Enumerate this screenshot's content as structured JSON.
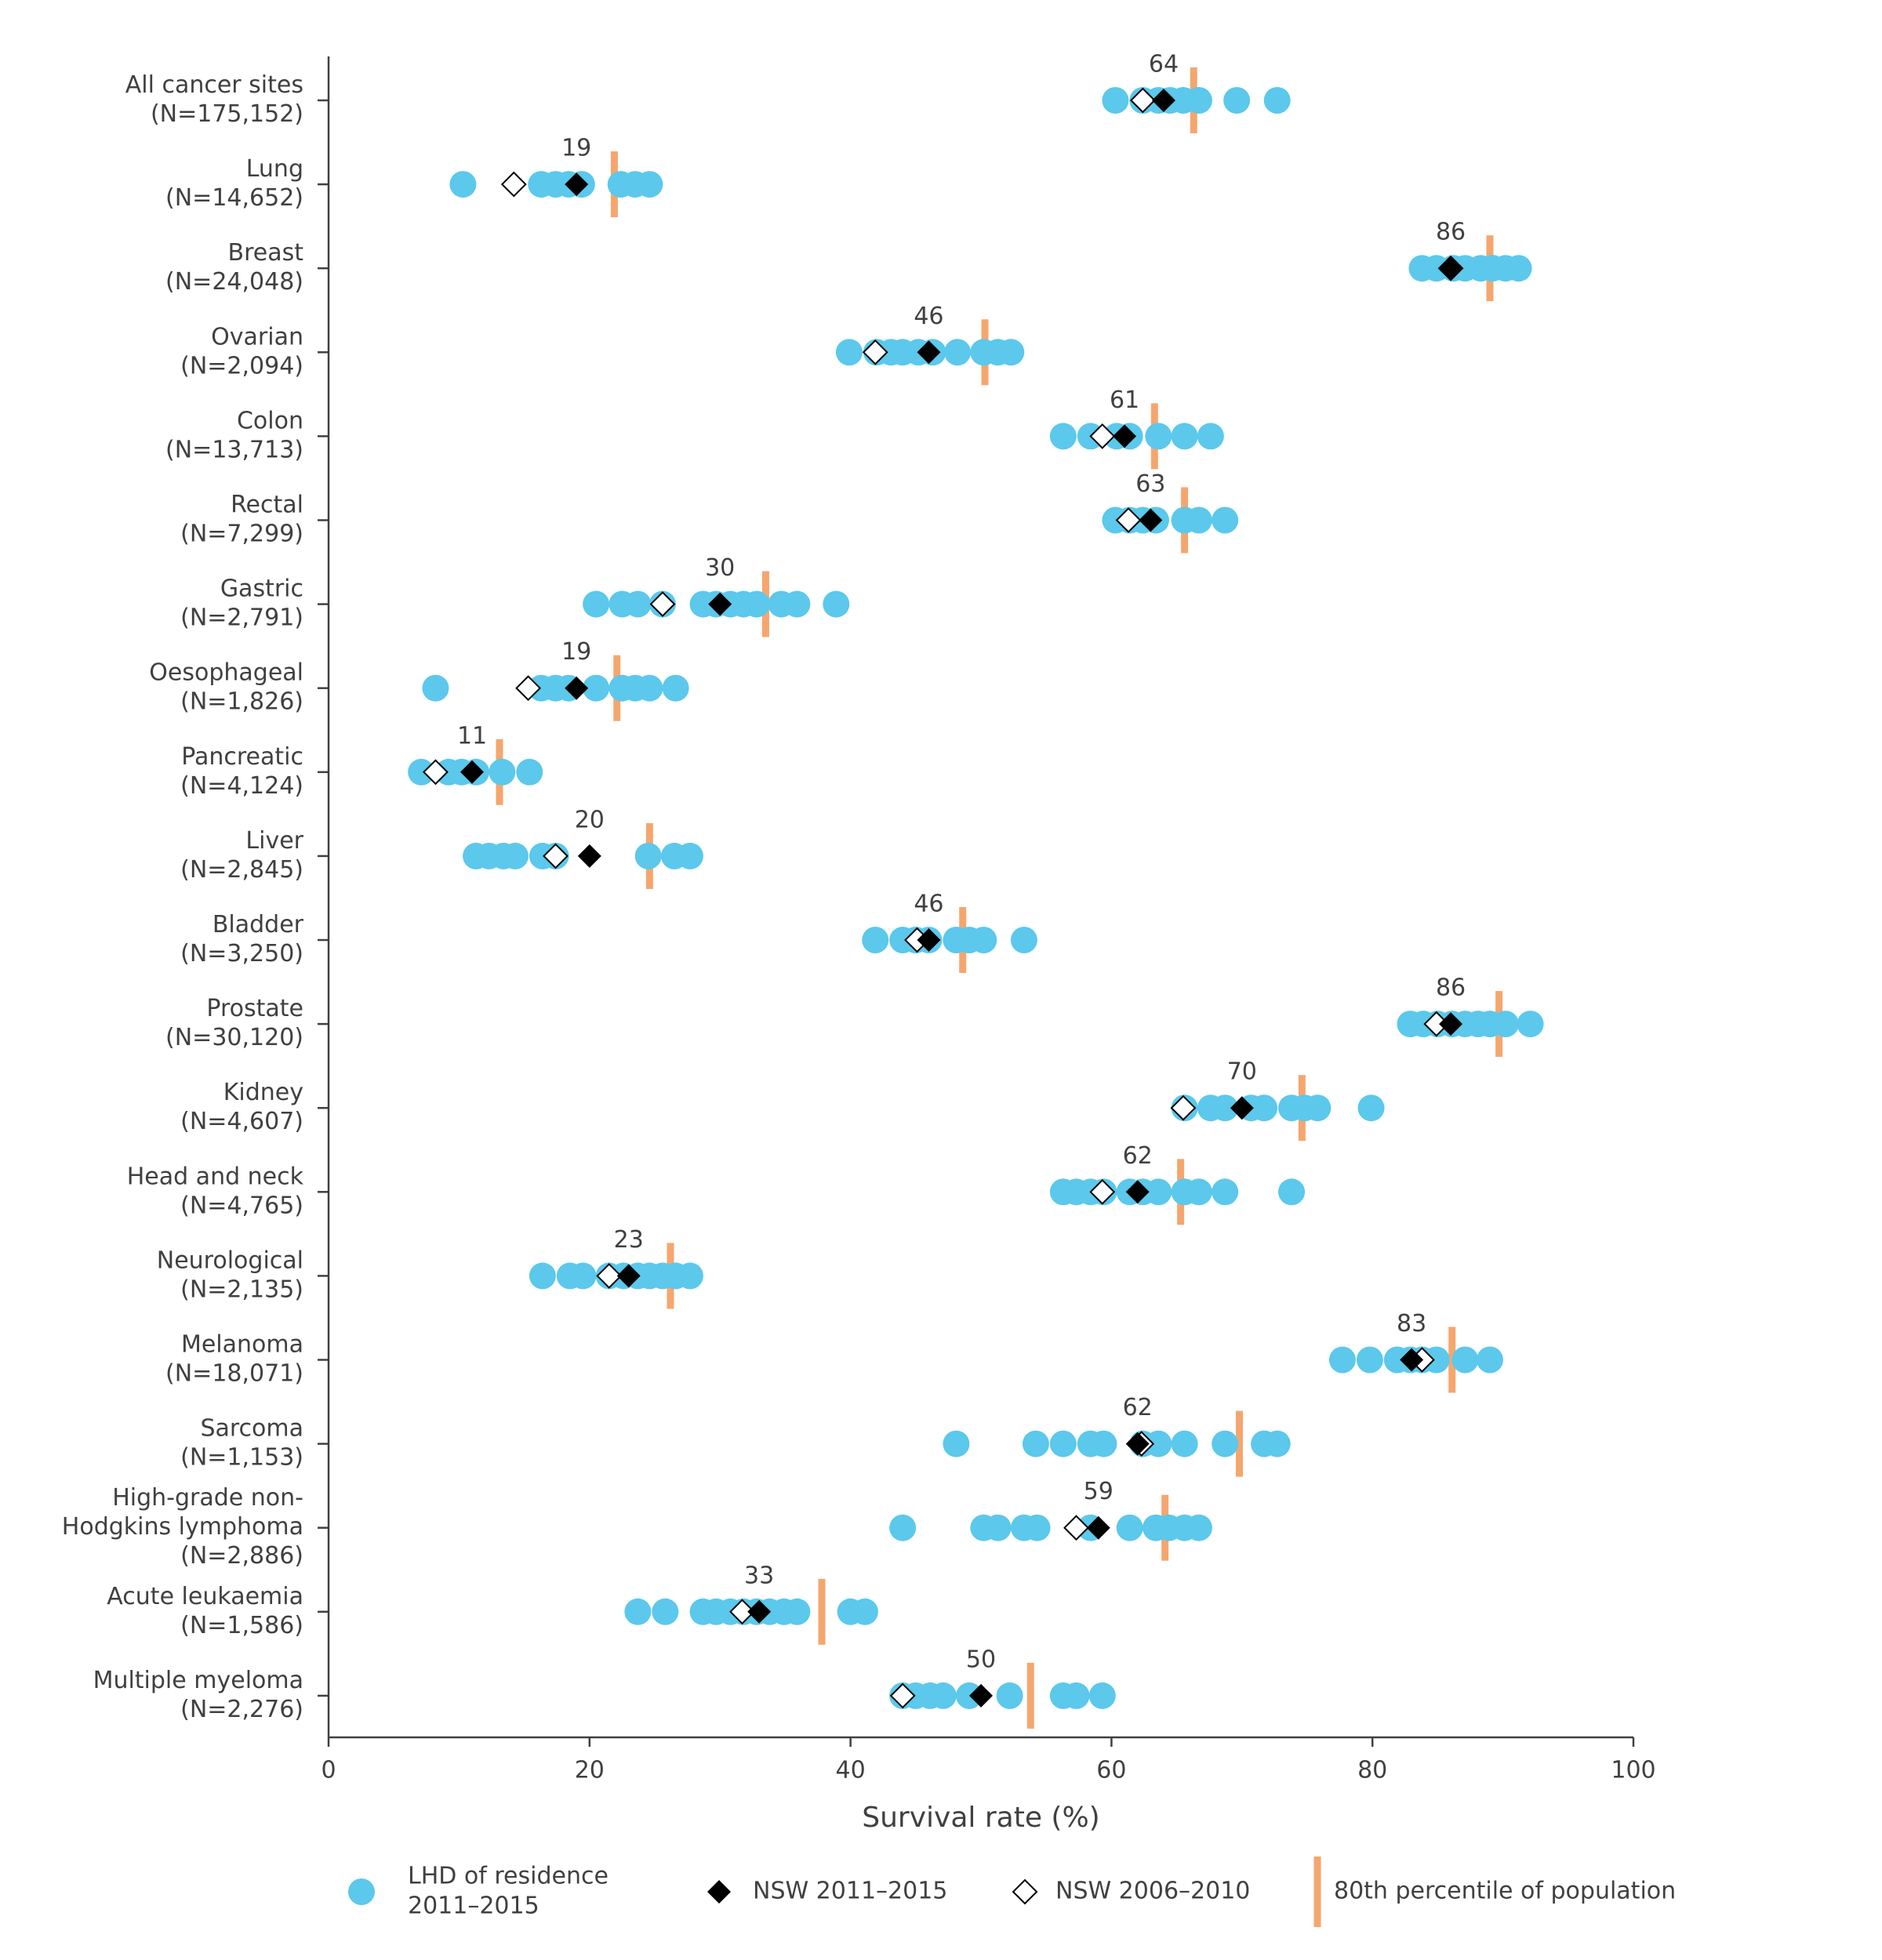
{
  "chart_data": {
    "type": "dot",
    "xlabel": "Survival rate (%)",
    "xlim": [
      0,
      100
    ],
    "xticks": [
      0,
      20,
      40,
      60,
      80,
      100
    ],
    "categories": [
      [
        "All cancer sites",
        "(N=175,152)"
      ],
      [
        "Lung",
        "(N=14,652)"
      ],
      [
        "Breast",
        "(N=24,048)"
      ],
      [
        "Ovarian",
        "(N=2,094)"
      ],
      [
        "Colon",
        "(N=13,713)"
      ],
      [
        "Rectal",
        "(N=7,299)"
      ],
      [
        "Gastric",
        "(N=2,791)"
      ],
      [
        "Oesophageal",
        "(N=1,826)"
      ],
      [
        "Pancreatic",
        "(N=4,124)"
      ],
      [
        "Liver",
        "(N=2,845)"
      ],
      [
        "Bladder",
        "(N=3,250)"
      ],
      [
        "Prostate",
        "(N=30,120)"
      ],
      [
        "Kidney",
        "(N=4,607)"
      ],
      [
        "Head and neck",
        "(N=4,765)"
      ],
      [
        "Neurological",
        "(N=2,135)"
      ],
      [
        "Melanoma",
        "(N=18,071)"
      ],
      [
        "Sarcoma",
        "(N=1,153)"
      ],
      [
        "High-grade non-",
        "Hodgkins lymphoma",
        "(N=2,886)"
      ],
      [
        "Acute leukaemia",
        "(N=1,586)"
      ],
      [
        "Multiple myeloma",
        "(N=2,276)"
      ]
    ],
    "series": [
      {
        "name": [
          "LHD of residence",
          "2011–2015"
        ],
        "color": "#5bc8ec",
        "marker": "circle",
        "values": [
          [
            60.3,
            62.4,
            63.6,
            64.5,
            65.5,
            66.7,
            69.6,
            72.7
          ],
          [
            10.3,
            16.3,
            17.4,
            18.4,
            19.4,
            22.4,
            23.5,
            24.6
          ],
          [
            83.8,
            84.9,
            86.2,
            87.1,
            88.3,
            89.2,
            90.2,
            91.2
          ],
          [
            39.9,
            42.0,
            43.1,
            44.0,
            45.2,
            46.3,
            48.2,
            50.2,
            51.3,
            52.3
          ],
          [
            56.3,
            58.4,
            60.4,
            61.4,
            63.6,
            65.6,
            67.6
          ],
          [
            60.3,
            61.4,
            62.4,
            63.4,
            65.6,
            66.7,
            68.7
          ],
          [
            20.5,
            22.5,
            23.7,
            25.6,
            28.7,
            29.7,
            30.8,
            31.8,
            32.8,
            34.7,
            35.9,
            38.9
          ],
          [
            8.2,
            16.3,
            17.4,
            18.4,
            20.5,
            22.5,
            23.5,
            24.6,
            26.6
          ],
          [
            7.1,
            9.2,
            10.2,
            11.3,
            13.3,
            15.4
          ],
          [
            11.3,
            12.3,
            13.4,
            14.3,
            16.4,
            17.4,
            24.5,
            26.5,
            27.7
          ],
          [
            41.9,
            44.0,
            45.0,
            46.0,
            48.1,
            49.1,
            50.2,
            53.3
          ],
          [
            82.9,
            83.9,
            85.0,
            86.1,
            87.1,
            88.1,
            89.0,
            90.2,
            92.1
          ],
          [
            65.6,
            67.6,
            68.7,
            70.7,
            71.7,
            73.8,
            74.8,
            75.8,
            79.9
          ],
          [
            56.3,
            57.3,
            58.4,
            59.4,
            61.4,
            62.4,
            63.6,
            65.6,
            66.7,
            68.7,
            73.8
          ],
          [
            16.4,
            18.5,
            19.5,
            21.5,
            22.6,
            23.7,
            24.6,
            25.6,
            26.6,
            27.7
          ],
          [
            77.7,
            79.8,
            81.9,
            82.9,
            83.8,
            84.9,
            87.1,
            89.0
          ],
          [
            48.1,
            54.2,
            56.3,
            58.4,
            59.4,
            62.4,
            63.6,
            65.6,
            68.7,
            71.7,
            72.7
          ],
          [
            44.0,
            50.2,
            51.3,
            53.3,
            54.3,
            58.4,
            61.4,
            63.4,
            64.4,
            65.6,
            66.7
          ],
          [
            23.7,
            25.8,
            28.7,
            29.7,
            30.8,
            31.8,
            32.8,
            33.8,
            34.9,
            35.9,
            40.0,
            41.1
          ],
          [
            44.0,
            45.0,
            46.1,
            47.1,
            49.1,
            52.2,
            56.3,
            57.3,
            59.3
          ]
        ]
      },
      {
        "name": [
          "NSW 2011–2015"
        ],
        "color": "#000000",
        "marker": "diamond",
        "labels": true,
        "values": [
          64,
          19,
          86,
          46,
          61,
          63,
          30,
          19,
          11,
          20,
          46,
          86,
          70,
          62,
          23,
          83,
          62,
          59,
          33,
          50
        ]
      },
      {
        "name": [
          "NSW 2006–2010"
        ],
        "color": "#000000",
        "marker": "diamond-open",
        "values": [
          62.4,
          14.2,
          86.0,
          41.9,
          59.3,
          61.3,
          25.6,
          15.3,
          8.2,
          17.4,
          45.1,
          84.9,
          65.5,
          59.3,
          21.5,
          83.8,
          62.3,
          57.3,
          31.7,
          44.0
        ]
      },
      {
        "name": [
          "80th percentile of population"
        ],
        "color": "#f5a66e",
        "marker": "bar",
        "values": [
          66.3,
          21.9,
          89.0,
          50.3,
          63.3,
          65.6,
          33.5,
          22.1,
          13.1,
          24.6,
          48.6,
          89.7,
          74.6,
          65.3,
          26.2,
          86.1,
          69.8,
          64.1,
          37.8,
          53.8
        ]
      }
    ]
  }
}
